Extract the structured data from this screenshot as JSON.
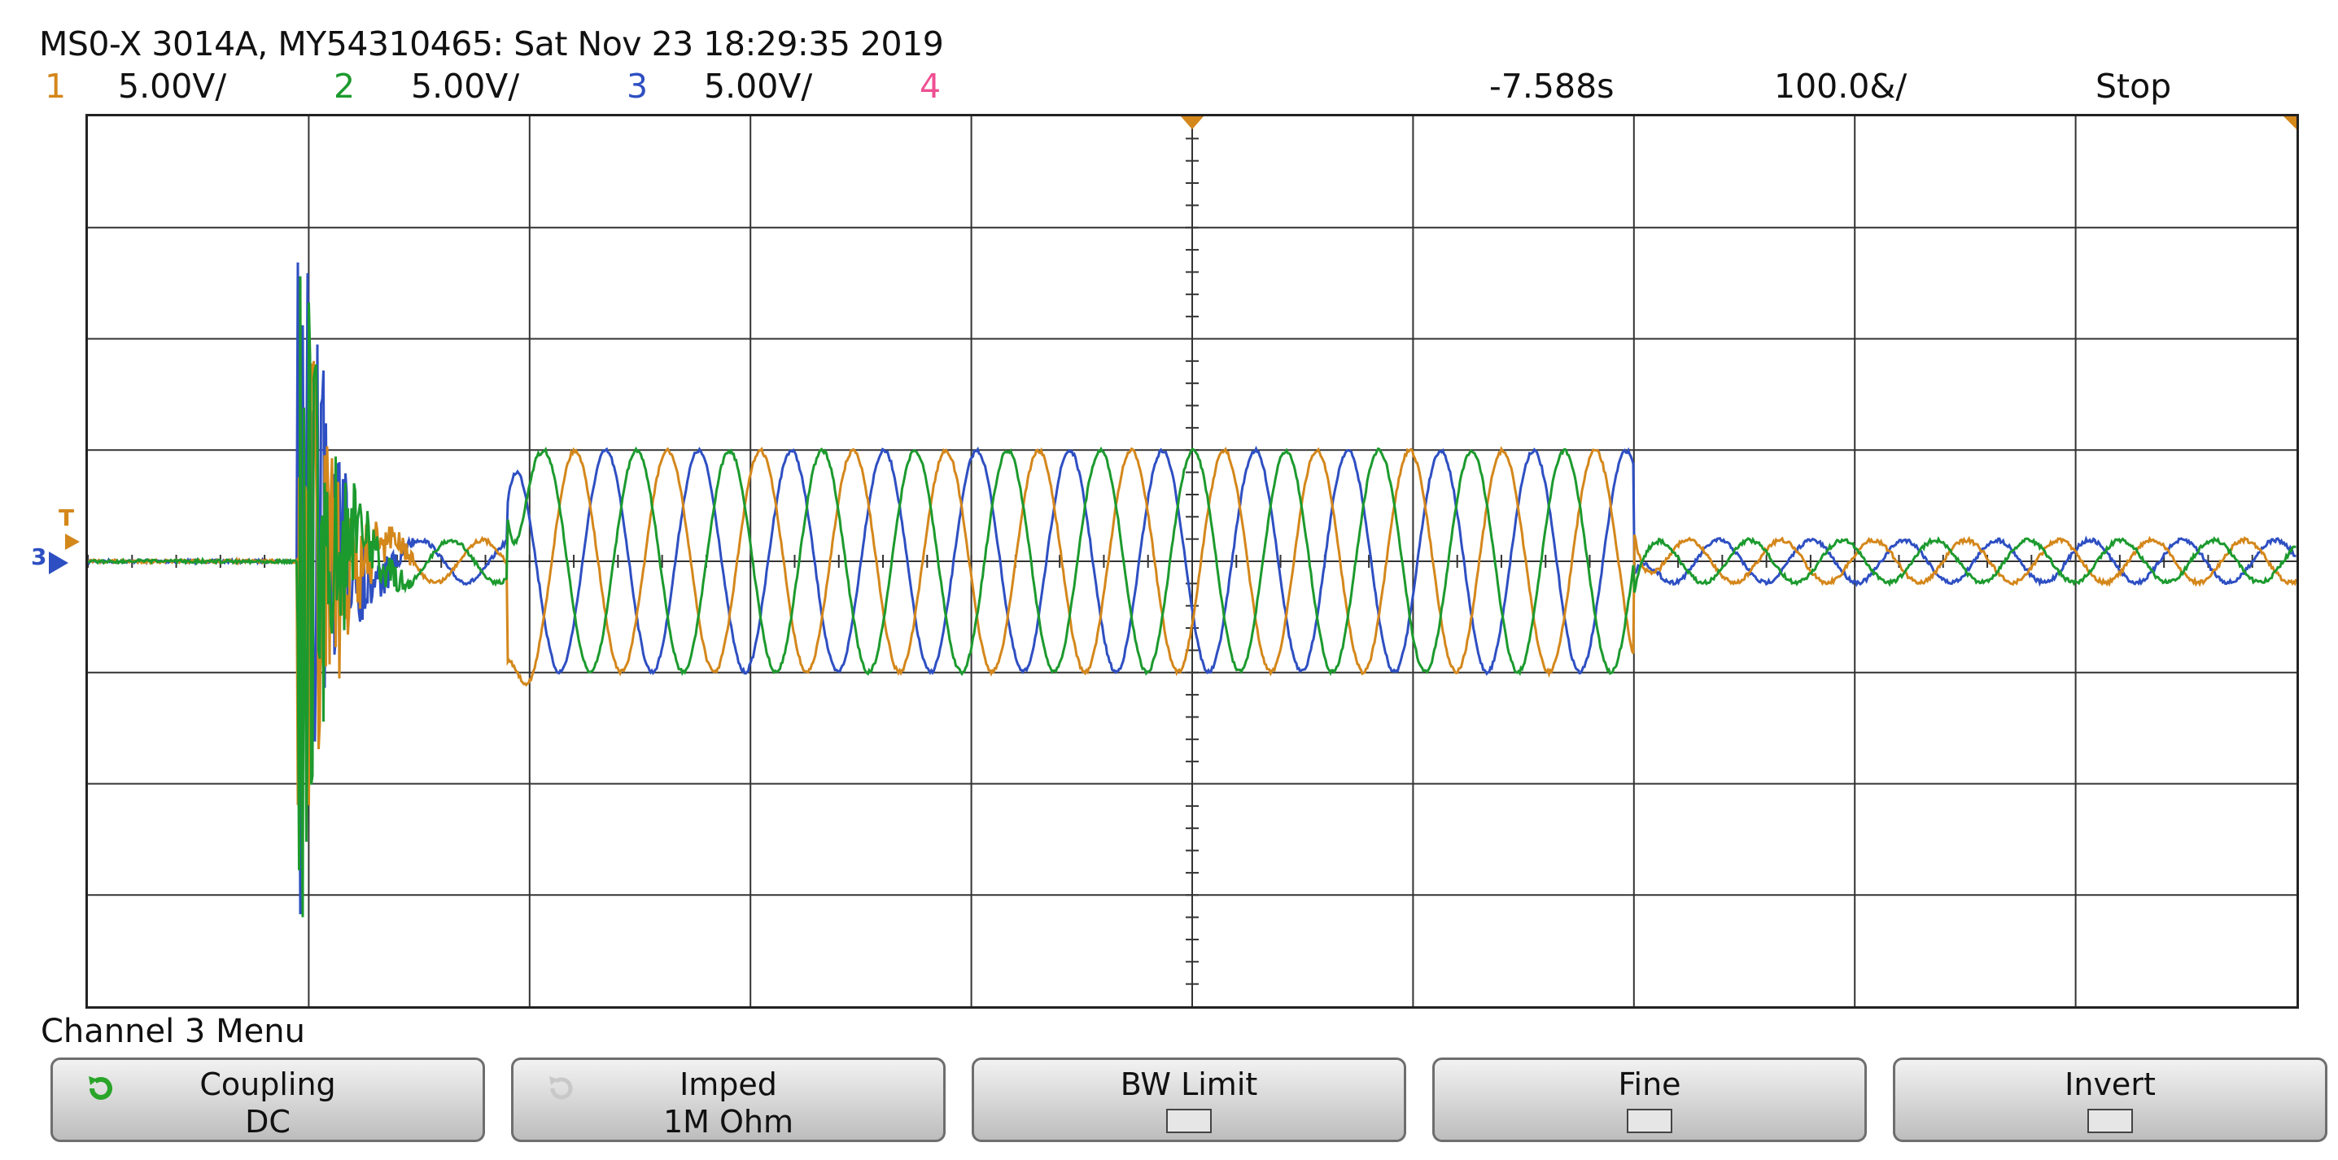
{
  "header": {
    "text": "MS0-X 3014A, MY54310465: Sat Nov 23 18:29:35 2019"
  },
  "status": {
    "ch1_number": "1",
    "ch1_scale": "5.00V/",
    "ch2_number": "2",
    "ch2_scale": "5.00V/",
    "ch3_number": "3",
    "ch3_scale": "5.00V/",
    "ch4_number": "4",
    "time_offset": "-7.588s",
    "time_scale": "100.0&/",
    "run_state": "Stop"
  },
  "markers": {
    "ch3_ground": "3",
    "trigger": "T"
  },
  "colors": {
    "ch1": "#d4871b",
    "ch2": "#1c9a2e",
    "ch3": "#2e4fc2",
    "ch4": "#ef4f92",
    "grid": "#333333",
    "screen_bg": "#ffffff"
  },
  "menu": {
    "title": "Channel 3 Menu",
    "softkeys": [
      {
        "label": "Coupling",
        "value": "DC",
        "icon": "rotate-icon"
      },
      {
        "label": "Imped",
        "value": "1M Ohm",
        "icon": "rotate-icon"
      },
      {
        "label": "BW Limit",
        "value": "",
        "icon": "checkbox-icon"
      },
      {
        "label": "Fine",
        "value": "",
        "icon": "checkbox-icon"
      },
      {
        "label": "Invert",
        "value": "",
        "icon": "checkbox-icon"
      }
    ]
  }
}
